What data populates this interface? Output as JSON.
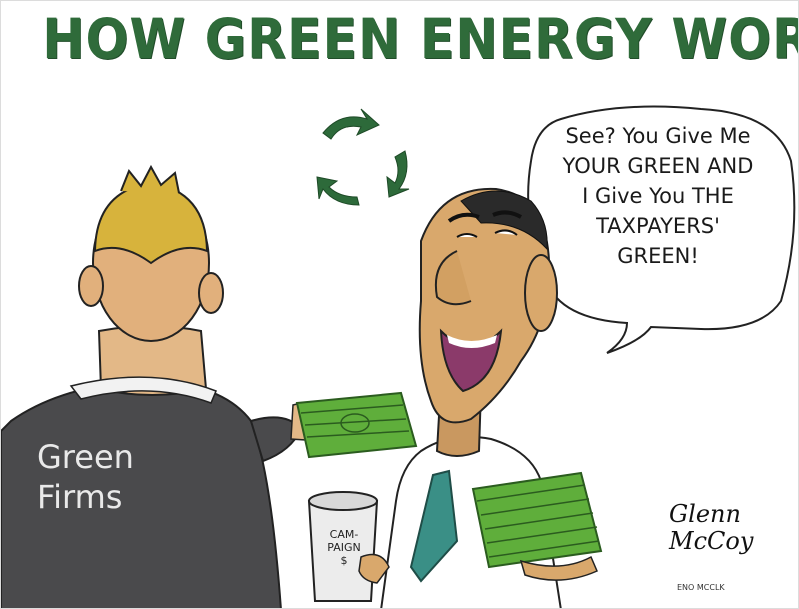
{
  "title": "HOW GREEN ENERGY WORKS",
  "speech_bubble": {
    "lines": [
      "See? You Give Me",
      "YOUR GREEN AND",
      "I Give You THE",
      "TAXPAYERS'",
      "GREEN!"
    ]
  },
  "jacket_label": {
    "lines": [
      "Green",
      "Firms"
    ]
  },
  "can_label": {
    "lines": [
      "CAM-",
      "PAIGN",
      "$"
    ]
  },
  "signature": {
    "name_lines": [
      "Glenn",
      "McCoy"
    ],
    "small_text": "ENO MCCLK"
  },
  "colors": {
    "title_green": "#2f6b3a",
    "money_green": "#5fae3b",
    "suit_gray": "#4a4a4c",
    "skin": "#d9a86c",
    "hair": "#d7b33c"
  },
  "icons": [
    "recycle-arrows-icon"
  ]
}
